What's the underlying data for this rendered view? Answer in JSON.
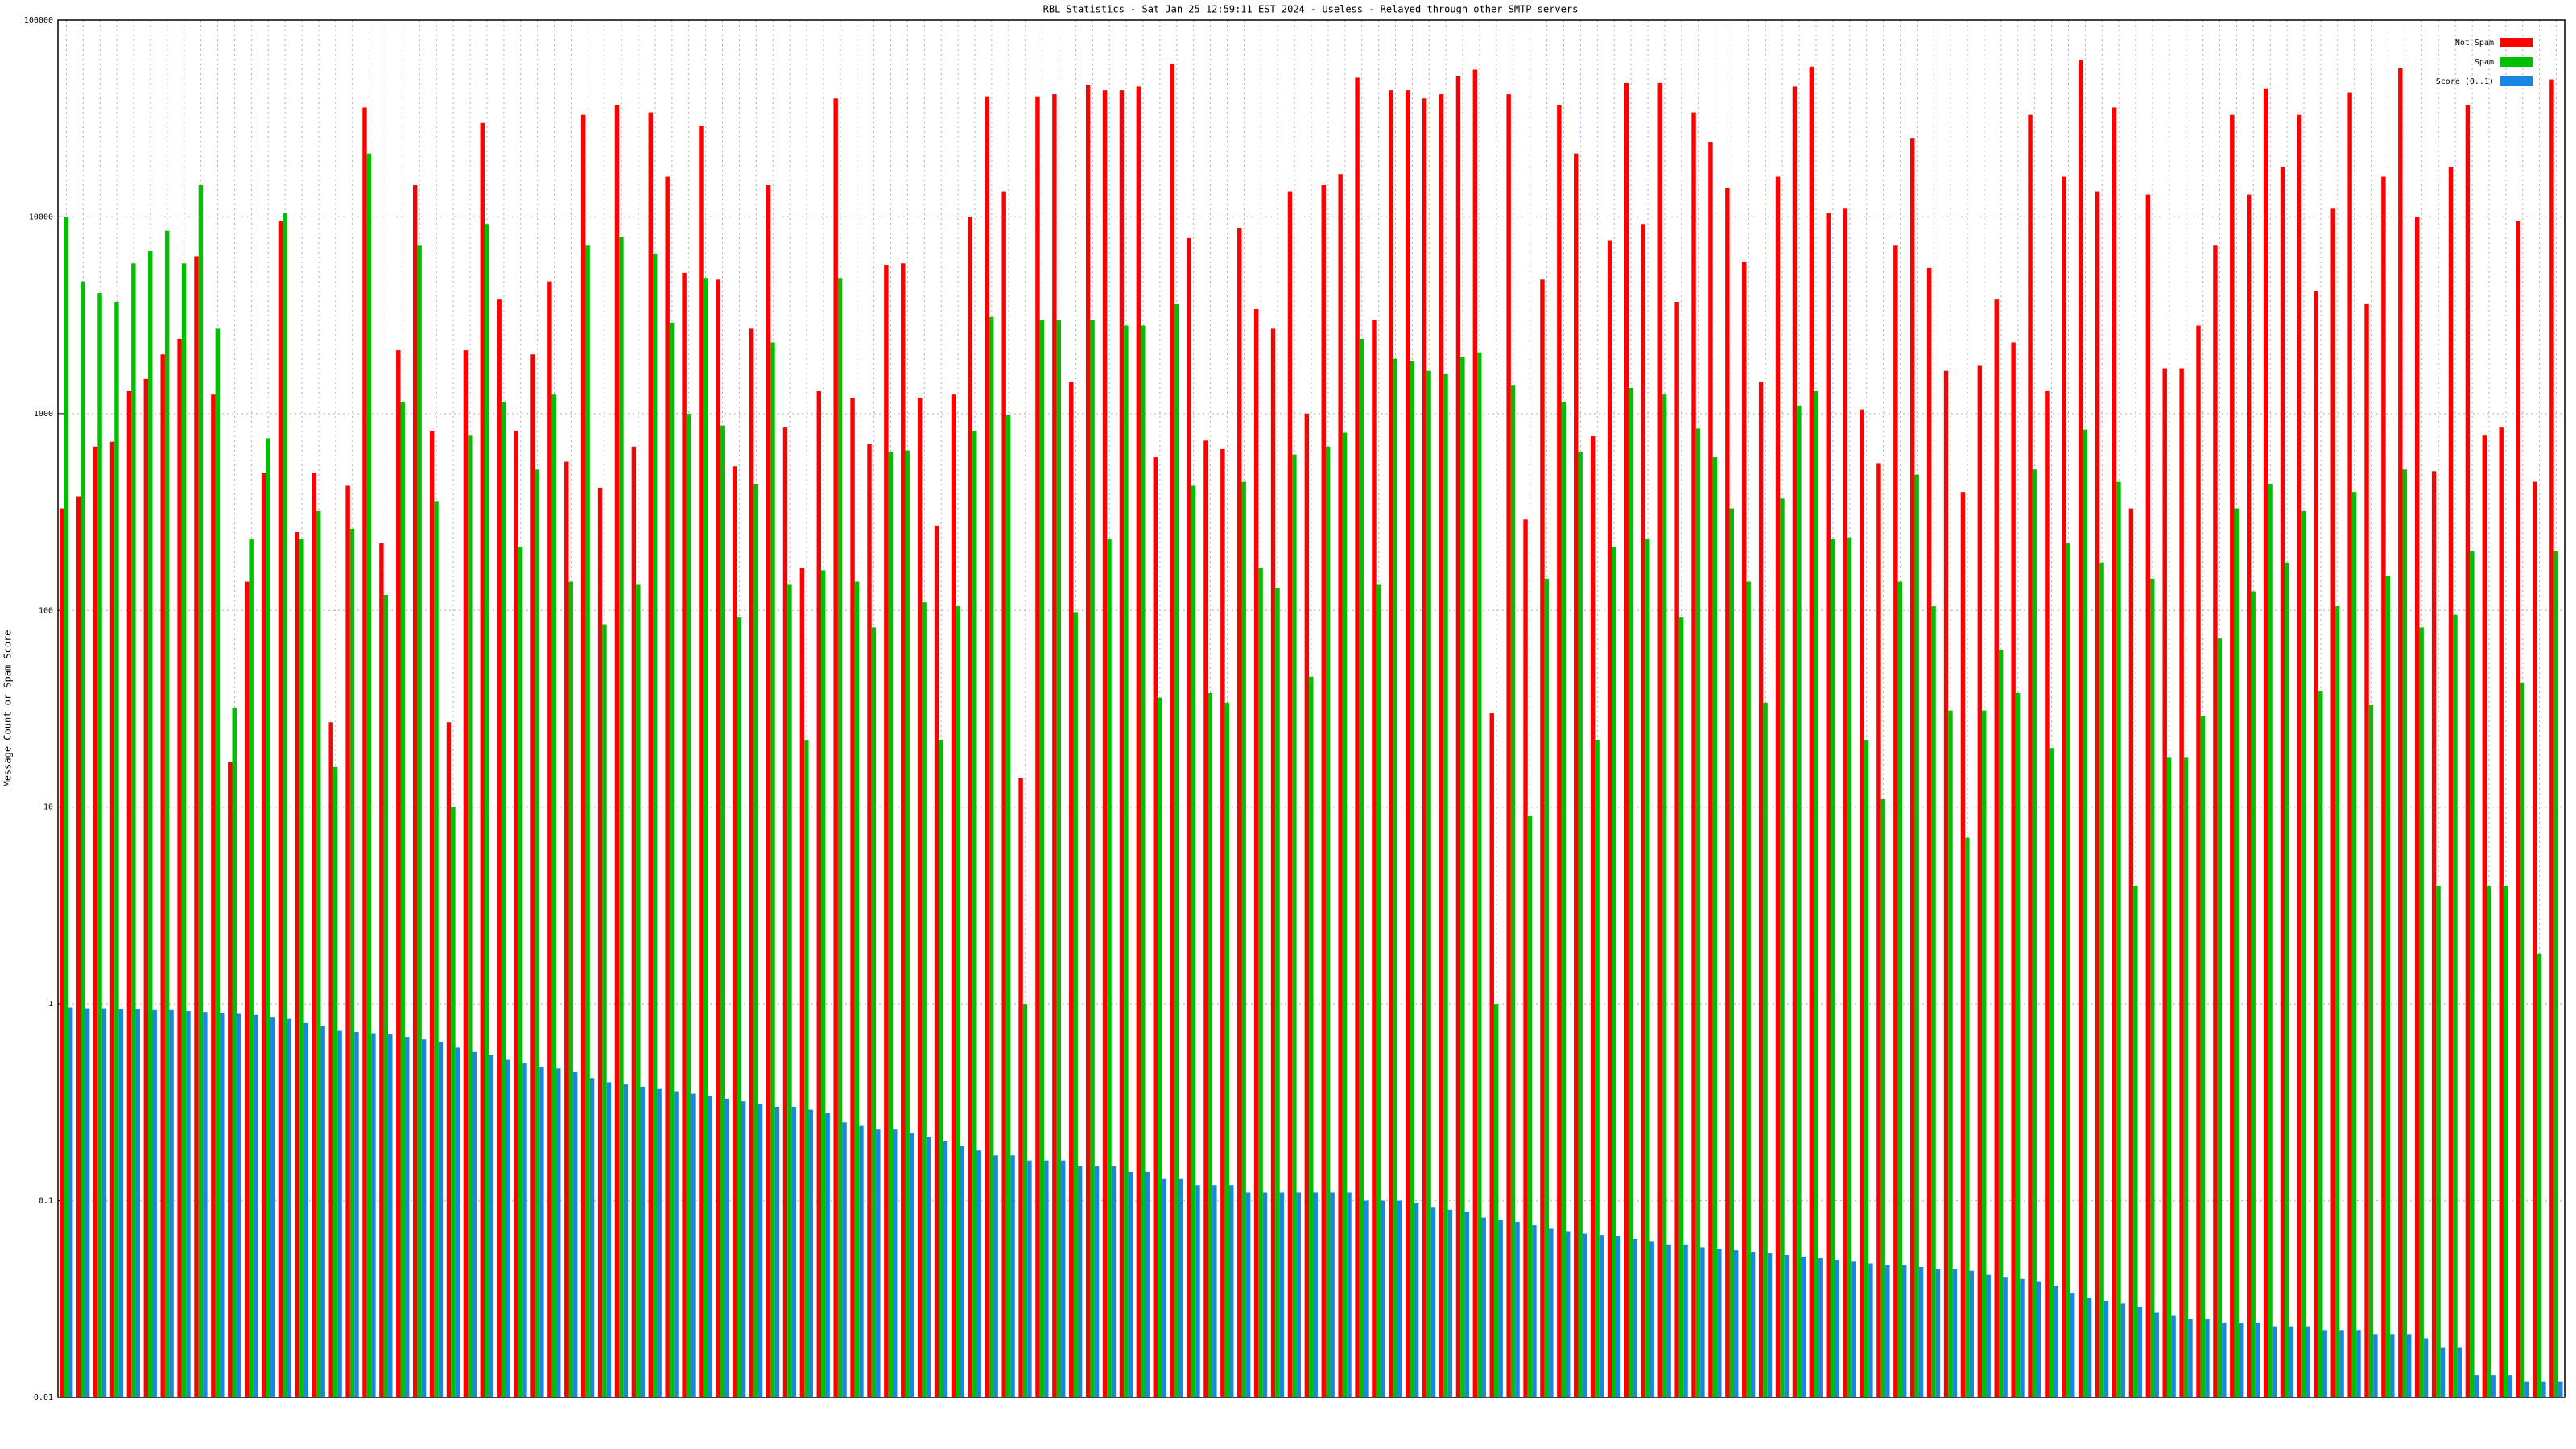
{
  "chart_data": {
    "type": "bar",
    "title": "RBL Statistics - Sat Jan 25 12:59:11 EST 2024 - Useless - Relayed through other SMTP servers",
    "y_label": "Message Count or Spam Score",
    "log_scale": true,
    "grid": true,
    "legend_position": "top-right",
    "ylim": [
      0.01,
      100000
    ],
    "yticks": [
      0.01,
      0.1,
      1,
      10,
      100,
      1000,
      10000,
      100000
    ],
    "categories": [
      null,
      null,
      null,
      null,
      null,
      null,
      null,
      null,
      null,
      null,
      null,
      null,
      null,
      null,
      null,
      null,
      null,
      null,
      null,
      null,
      null,
      null,
      null,
      null,
      null,
      null,
      null,
      null,
      null,
      null,
      null,
      null,
      null,
      null,
      null,
      null,
      null,
      null,
      null,
      null,
      null,
      null,
      null,
      null,
      null,
      null,
      null,
      null,
      null,
      null,
      null,
      null,
      null,
      null,
      null,
      null,
      null,
      null,
      null,
      null,
      null,
      null,
      null,
      null,
      null,
      null,
      null,
      null,
      null,
      null,
      null,
      null,
      null,
      null,
      null,
      null,
      null,
      null,
      null,
      null,
      null,
      null,
      null,
      null,
      null,
      null,
      null,
      null,
      null,
      null,
      null,
      null,
      null,
      null,
      null,
      null,
      null,
      null,
      null,
      null,
      null,
      null,
      null,
      null,
      null,
      null,
      null,
      null,
      null,
      null,
      null,
      null,
      null,
      null,
      null,
      null,
      null,
      null,
      null,
      null,
      null,
      null,
      null,
      null,
      null,
      null,
      null,
      null,
      null,
      null,
      null,
      null,
      null,
      null,
      null,
      null,
      null,
      null,
      null,
      null,
      null,
      null,
      null,
      null,
      null,
      null,
      null,
      null,
      null
    ],
    "series": [
      {
        "name": "Not Spam",
        "color": "#ff0000",
        "values": [
          330,
          380,
          680,
          720,
          1300,
          1500,
          2000,
          2400,
          6300,
          1250,
          17,
          140,
          500,
          9500,
          250,
          500,
          27,
          430,
          36000,
          220,
          2100,
          14500,
          820,
          27,
          2100,
          30000,
          3800,
          820,
          2000,
          4700,
          570,
          33000,
          420,
          37000,
          680,
          34000,
          16000,
          5200,
          29000,
          4800,
          540,
          2700,
          14500,
          850,
          165,
          1300,
          40000,
          1200,
          700,
          5700,
          5800,
          1200,
          270,
          1250,
          10000,
          41000,
          13500,
          14,
          41000,
          42000,
          1450,
          47000,
          44000,
          44000,
          46000,
          600,
          60000,
          7800,
          730,
          660,
          8800,
          3400,
          2700,
          13500,
          1000,
          14500,
          16500,
          51000,
          3000,
          44000,
          44000,
          40000,
          42000,
          52000,
          56000,
          30,
          42000,
          290,
          4800,
          37000,
          21000,
          770,
          7600,
          48000,
          9200,
          48000,
          3700,
          34000,
          24000,
          14000,
          5900,
          1450,
          16000,
          46000,
          58000,
          10500,
          11000,
          1050,
          560,
          7200,
          25000,
          5500,
          1650,
          400,
          1750,
          3800,
          2300,
          33000,
          1300,
          16000,
          63000,
          13500,
          36000,
          330,
          13000,
          1700,
          1700,
          2800,
          7200,
          33000,
          13000,
          45000,
          18000,
          33000,
          4200,
          11000,
          43000,
          3600,
          16000,
          57000,
          10000,
          510,
          18000,
          37000,
          780,
          850,
          9500,
          450,
          50000
        ]
      },
      {
        "name": "Spam",
        "color": "#00c000",
        "values": [
          10000,
          4700,
          4100,
          3700,
          5800,
          6700,
          8500,
          5800,
          14500,
          2700,
          32,
          230,
          750,
          10500,
          230,
          320,
          16,
          260,
          21000,
          120,
          1150,
          7200,
          360,
          10,
          780,
          9200,
          1150,
          210,
          520,
          1250,
          140,
          7200,
          85,
          7900,
          135,
          6500,
          2900,
          1000,
          4900,
          870,
          92,
          440,
          2300,
          135,
          22,
          160,
          4900,
          140,
          82,
          640,
          650,
          110,
          22,
          105,
          820,
          3100,
          980,
          1,
          3000,
          3000,
          98,
          3000,
          230,
          2800,
          2800,
          36,
          3600,
          430,
          38,
          34,
          450,
          165,
          130,
          620,
          46,
          680,
          800,
          2400,
          135,
          1900,
          1850,
          1650,
          1600,
          1950,
          2050,
          1,
          1400,
          9,
          145,
          1150,
          640,
          22,
          210,
          1350,
          230,
          1250,
          92,
          840,
          600,
          330,
          140,
          34,
          370,
          1100,
          1300,
          230,
          235,
          22,
          11,
          140,
          490,
          105,
          31,
          7,
          31,
          63,
          38,
          520,
          20,
          220,
          830,
          175,
          450,
          4,
          145,
          18,
          18,
          29,
          72,
          330,
          125,
          440,
          175,
          320,
          39,
          105,
          400,
          33,
          150,
          520,
          82,
          4,
          95,
          200,
          4,
          4,
          43,
          1.8,
          200
        ]
      },
      {
        "name": "Score (0..1)",
        "color": "#1a86e0",
        "values": [
          0.96,
          0.95,
          0.95,
          0.94,
          0.94,
          0.93,
          0.93,
          0.92,
          0.91,
          0.9,
          0.89,
          0.88,
          0.86,
          0.84,
          0.8,
          0.77,
          0.73,
          0.72,
          0.71,
          0.7,
          0.68,
          0.66,
          0.64,
          0.6,
          0.57,
          0.55,
          0.52,
          0.5,
          0.48,
          0.47,
          0.45,
          0.42,
          0.4,
          0.39,
          0.38,
          0.37,
          0.36,
          0.35,
          0.34,
          0.33,
          0.32,
          0.31,
          0.3,
          0.3,
          0.29,
          0.28,
          0.25,
          0.24,
          0.23,
          0.23,
          0.22,
          0.21,
          0.2,
          0.19,
          0.18,
          0.17,
          0.17,
          0.16,
          0.16,
          0.16,
          0.15,
          0.15,
          0.15,
          0.14,
          0.14,
          0.13,
          0.13,
          0.12,
          0.12,
          0.12,
          0.11,
          0.11,
          0.11,
          0.11,
          0.11,
          0.11,
          0.11,
          0.1,
          0.1,
          0.1,
          0.097,
          0.093,
          0.09,
          0.088,
          0.082,
          0.08,
          0.078,
          0.075,
          0.072,
          0.07,
          0.068,
          0.067,
          0.066,
          0.064,
          0.062,
          0.06,
          0.06,
          0.058,
          0.057,
          0.056,
          0.055,
          0.054,
          0.053,
          0.052,
          0.051,
          0.05,
          0.049,
          0.048,
          0.047,
          0.047,
          0.046,
          0.045,
          0.045,
          0.044,
          0.042,
          0.041,
          0.04,
          0.039,
          0.037,
          0.034,
          0.032,
          0.031,
          0.03,
          0.029,
          0.027,
          0.026,
          0.025,
          0.025,
          0.024,
          0.024,
          0.024,
          0.023,
          0.023,
          0.023,
          0.022,
          0.022,
          0.022,
          0.021,
          0.021,
          0.021,
          0.02,
          0.018,
          0.018,
          0.013,
          0.013,
          0.013,
          0.012,
          0.012,
          0.012
        ]
      }
    ]
  }
}
